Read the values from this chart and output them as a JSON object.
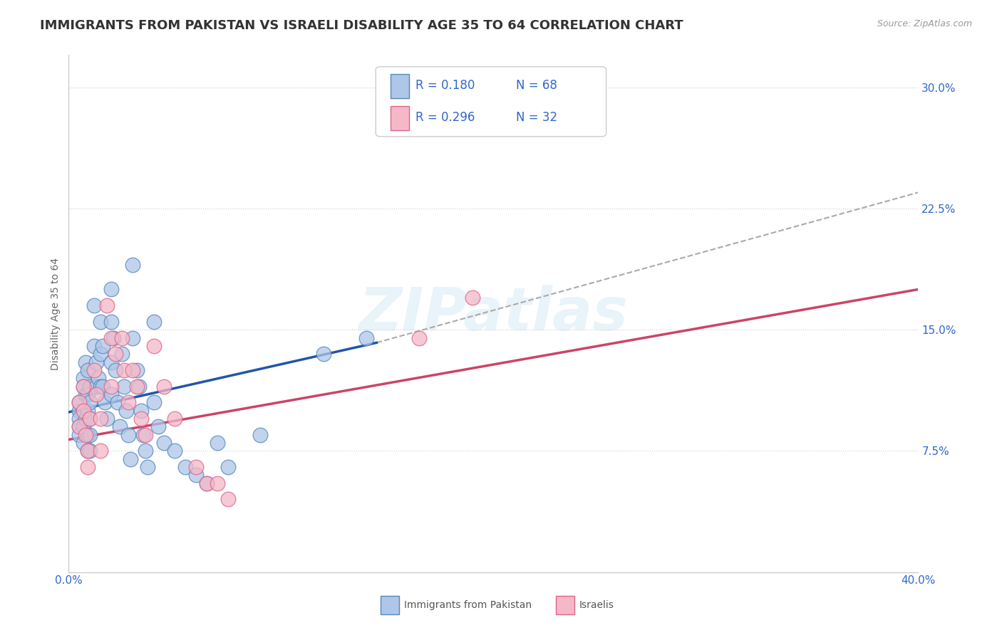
{
  "title": "IMMIGRANTS FROM PAKISTAN VS ISRAELI DISABILITY AGE 35 TO 64 CORRELATION CHART",
  "source_text": "Source: ZipAtlas.com",
  "ylabel": "Disability Age 35 to 64",
  "xlim": [
    0.0,
    0.4
  ],
  "ylim": [
    0.0,
    0.32
  ],
  "xticks": [
    0.0,
    0.4
  ],
  "xtick_labels": [
    "0.0%",
    "40.0%"
  ],
  "yticks": [
    0.075,
    0.15,
    0.225,
    0.3
  ],
  "ytick_labels": [
    "7.5%",
    "15.0%",
    "22.5%",
    "30.0%"
  ],
  "title_fontsize": 13,
  "axis_label_fontsize": 10,
  "tick_label_fontsize": 11,
  "legend_fontsize": 12,
  "watermark": "ZIPatlas",
  "blue_color": "#aec6e8",
  "pink_color": "#f5b8c8",
  "blue_edge_color": "#5588bb",
  "pink_edge_color": "#dd6688",
  "blue_trend_color": "#2255aa",
  "pink_trend_color": "#cc4466",
  "dashed_color": "#aaaaaa",
  "r_n_color": "#3366cc",
  "legend_r_label1": "R = 0.180",
  "legend_n_label1": "N = 68",
  "legend_r_label2": "R = 0.296",
  "legend_n_label2": "N = 32",
  "blue_scatter_x": [
    0.005,
    0.005,
    0.005,
    0.005,
    0.005,
    0.007,
    0.007,
    0.007,
    0.007,
    0.008,
    0.008,
    0.008,
    0.009,
    0.009,
    0.009,
    0.009,
    0.009,
    0.01,
    0.01,
    0.01,
    0.01,
    0.01,
    0.012,
    0.012,
    0.013,
    0.013,
    0.014,
    0.015,
    0.015,
    0.015,
    0.016,
    0.016,
    0.017,
    0.018,
    0.02,
    0.02,
    0.02,
    0.02,
    0.021,
    0.022,
    0.023,
    0.024,
    0.025,
    0.026,
    0.027,
    0.028,
    0.029,
    0.03,
    0.03,
    0.032,
    0.033,
    0.034,
    0.035,
    0.036,
    0.037,
    0.04,
    0.04,
    0.042,
    0.045,
    0.05,
    0.055,
    0.06,
    0.065,
    0.07,
    0.075,
    0.09,
    0.12,
    0.14
  ],
  "blue_scatter_y": [
    0.1,
    0.105,
    0.095,
    0.09,
    0.085,
    0.12,
    0.115,
    0.09,
    0.08,
    0.13,
    0.11,
    0.095,
    0.125,
    0.11,
    0.1,
    0.085,
    0.075,
    0.115,
    0.105,
    0.095,
    0.085,
    0.075,
    0.165,
    0.14,
    0.13,
    0.115,
    0.12,
    0.155,
    0.135,
    0.115,
    0.14,
    0.115,
    0.105,
    0.095,
    0.175,
    0.155,
    0.13,
    0.11,
    0.145,
    0.125,
    0.105,
    0.09,
    0.135,
    0.115,
    0.1,
    0.085,
    0.07,
    0.19,
    0.145,
    0.125,
    0.115,
    0.1,
    0.085,
    0.075,
    0.065,
    0.155,
    0.105,
    0.09,
    0.08,
    0.075,
    0.065,
    0.06,
    0.055,
    0.08,
    0.065,
    0.085,
    0.135,
    0.145
  ],
  "pink_scatter_x": [
    0.005,
    0.005,
    0.007,
    0.007,
    0.008,
    0.009,
    0.009,
    0.01,
    0.012,
    0.013,
    0.015,
    0.015,
    0.018,
    0.02,
    0.02,
    0.022,
    0.025,
    0.026,
    0.028,
    0.03,
    0.032,
    0.034,
    0.036,
    0.04,
    0.045,
    0.05,
    0.06,
    0.065,
    0.07,
    0.075,
    0.165,
    0.19
  ],
  "pink_scatter_y": [
    0.105,
    0.09,
    0.115,
    0.1,
    0.085,
    0.075,
    0.065,
    0.095,
    0.125,
    0.11,
    0.095,
    0.075,
    0.165,
    0.145,
    0.115,
    0.135,
    0.145,
    0.125,
    0.105,
    0.125,
    0.115,
    0.095,
    0.085,
    0.14,
    0.115,
    0.095,
    0.065,
    0.055,
    0.055,
    0.045,
    0.145,
    0.17
  ],
  "blue_trend_x": [
    0.0,
    0.145
  ],
  "blue_trend_y": [
    0.099,
    0.142
  ],
  "pink_trend_x": [
    0.0,
    0.4
  ],
  "pink_trend_y": [
    0.082,
    0.175
  ],
  "dashed_trend_x": [
    0.145,
    0.4
  ],
  "dashed_trend_y": [
    0.142,
    0.235
  ],
  "background_color": "#ffffff",
  "plot_bg_color": "#ffffff",
  "grid_color": "#cccccc",
  "title_color": "#333333",
  "tick_color": "#3366cc"
}
